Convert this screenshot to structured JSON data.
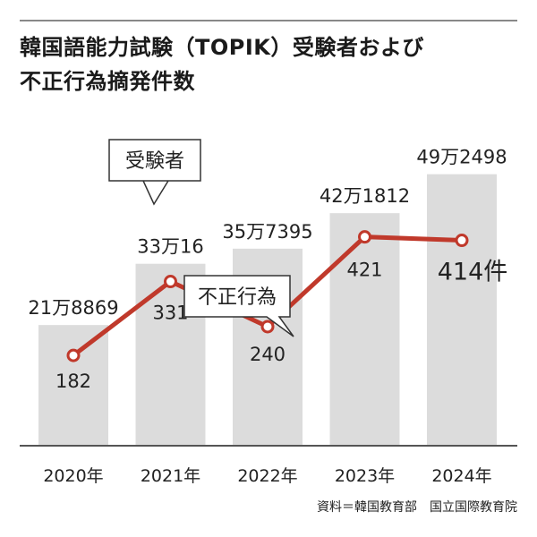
{
  "title_line1": "韓国語能力試験（TOPIK）受験者および",
  "title_line2": "不正行為摘発件数",
  "source": "資料＝韓国教育部　国立国際教育院",
  "colors": {
    "bar": "#dcdcdc",
    "line": "#c0392b",
    "axis": "#555555"
  },
  "chart_data": {
    "type": "bar",
    "categories": [
      "2020年",
      "2021年",
      "2022年",
      "2023年",
      "2024年"
    ],
    "series": [
      {
        "name": "受験者",
        "type": "bar",
        "values": [
          218869,
          330016,
          357395,
          421812,
          492498
        ],
        "labels": [
          "21万8869",
          "33万16",
          "35万7395",
          "42万1812",
          "49万2498"
        ]
      },
      {
        "name": "不正行為",
        "type": "line",
        "values": [
          182,
          331,
          240,
          421,
          414
        ],
        "labels": [
          "182",
          "331",
          "240",
          "421",
          "414件"
        ]
      }
    ],
    "ylim_bar": [
      0,
      500000
    ],
    "ylim_line": [
      0,
      700
    ],
    "legend": "callouts"
  }
}
